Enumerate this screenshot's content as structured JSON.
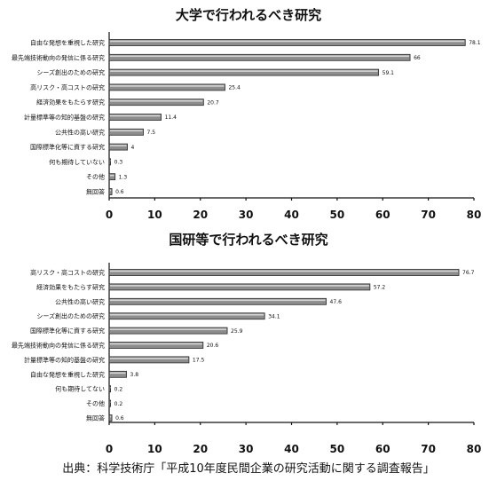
{
  "chart_data": [
    {
      "type": "bar",
      "orientation": "horizontal",
      "title": "大学で行われるべき研究",
      "categories": [
        "自由な発想を重視した研究",
        "最先端技術動向の発信に係る研究",
        "シーズ創出のための研究",
        "高リスク・高コストの研究",
        "経済効果をもたらす研究",
        "計量標準等の知的基盤の研究",
        "公共性の高い研究",
        "国際標準化等に資する研究",
        "何も期待していない",
        "その他",
        "無回答"
      ],
      "values": [
        78.1,
        66,
        59.1,
        25.4,
        20.7,
        11.4,
        7.5,
        4,
        0.3,
        1.3,
        0.6
      ],
      "value_labels": [
        "78.1",
        "66",
        "59.1",
        "25.4",
        "20.7",
        "11.4",
        "7.5",
        "4",
        "0.3",
        "1.3",
        "0.6"
      ],
      "xlim": [
        0,
        80
      ],
      "xticks": [
        "0",
        "10",
        "20",
        "30",
        "40",
        "50",
        "60",
        "70",
        "80"
      ],
      "grid": false,
      "colors": {
        "bar": "#8d8d8d",
        "bar_edge": "#2a2a2a"
      }
    },
    {
      "type": "bar",
      "orientation": "horizontal",
      "title": "国研等で行われるべき研究",
      "categories": [
        "高リスク・高コストの研究",
        "経済効果をもたらす研究",
        "公共性の高い研究",
        "シーズ創出のための研究",
        "国際標準化等に資する研究",
        "最先端技術動向の発信に係る研究",
        "計量標準等の知的基盤の研究",
        "自由な発想を重視した研究",
        "何も期待してない",
        "その他",
        "無回答"
      ],
      "values": [
        76.7,
        57.2,
        47.6,
        34.1,
        25.9,
        20.6,
        17.5,
        3.8,
        0.2,
        0.2,
        0.6
      ],
      "value_labels": [
        "76.7",
        "57.2",
        "47.6",
        "34.1",
        "25.9",
        "20.6",
        "17.5",
        "3.8",
        "0.2",
        "0.2",
        "0.6"
      ],
      "xlim": [
        0,
        80
      ],
      "xticks": [
        "0",
        "10",
        "20",
        "30",
        "40",
        "50",
        "60",
        "70",
        "80"
      ],
      "grid": false,
      "colors": {
        "bar": "#8d8d8d",
        "bar_edge": "#2a2a2a"
      }
    }
  ],
  "source": "出典：科学技術庁「平成10年度民間企業の研究活動に関する調査報告」"
}
